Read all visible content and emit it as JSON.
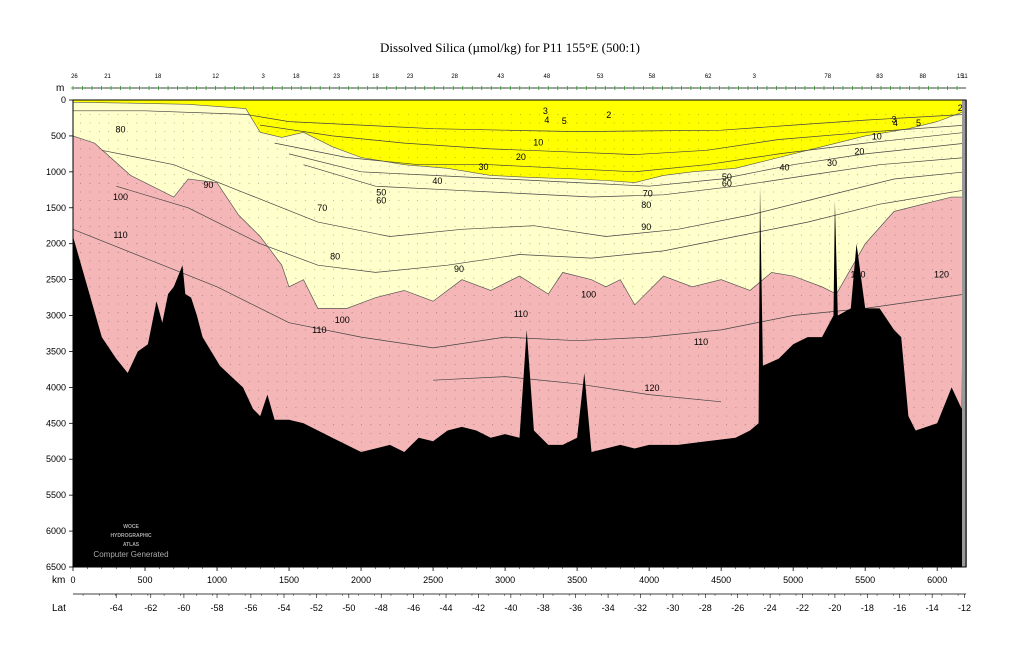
{
  "chart_data": {
    "type": "contour-section",
    "title": "Dissolved Silica (µmol/kg) for P11 155°E (500:1)",
    "depth_unit": "m",
    "distance_unit": "km",
    "lat_label": "Lat",
    "xlim": [
      0,
      6200
    ],
    "ylim": [
      0,
      6500
    ],
    "depth_ticks": [
      0,
      500,
      1000,
      1500,
      2000,
      2500,
      3000,
      3500,
      4000,
      4500,
      5000,
      5500,
      6000,
      6500
    ],
    "distance_ticks": [
      0,
      500,
      1000,
      1500,
      2000,
      2500,
      3000,
      3500,
      4000,
      4500,
      5000,
      5500,
      6000
    ],
    "latitude_ticks": [
      {
        "km": 300,
        "label": "-64"
      },
      {
        "km": 540,
        "label": "-62"
      },
      {
        "km": 770,
        "label": "-60"
      },
      {
        "km": 1000,
        "label": "-58"
      },
      {
        "km": 1235,
        "label": "-56"
      },
      {
        "km": 1465,
        "label": "-54"
      },
      {
        "km": 1690,
        "label": "-52"
      },
      {
        "km": 1915,
        "label": "-50"
      },
      {
        "km": 2140,
        "label": "-48"
      },
      {
        "km": 2365,
        "label": "-46"
      },
      {
        "km": 2590,
        "label": "-44"
      },
      {
        "km": 2815,
        "label": "-42"
      },
      {
        "km": 3040,
        "label": "-40"
      },
      {
        "km": 3265,
        "label": "-38"
      },
      {
        "km": 3490,
        "label": "-36"
      },
      {
        "km": 3715,
        "label": "-34"
      },
      {
        "km": 3940,
        "label": "-32"
      },
      {
        "km": 4165,
        "label": "-30"
      },
      {
        "km": 4390,
        "label": "-28"
      },
      {
        "km": 4615,
        "label": "-26"
      },
      {
        "km": 4840,
        "label": "-24"
      },
      {
        "km": 5065,
        "label": "-22"
      },
      {
        "km": 5290,
        "label": "-20"
      },
      {
        "km": 5515,
        "label": "-18"
      },
      {
        "km": 5740,
        "label": "-16"
      },
      {
        "km": 5965,
        "label": "-14"
      },
      {
        "km": 6190,
        "label": "-12"
      }
    ],
    "station_labels": [
      {
        "km": 10,
        "label": "26"
      },
      {
        "km": 240,
        "label": "21"
      },
      {
        "km": 590,
        "label": "18"
      },
      {
        "km": 990,
        "label": "12"
      },
      {
        "km": 1320,
        "label": "3"
      },
      {
        "km": 1550,
        "label": "18"
      },
      {
        "km": 1830,
        "label": "23"
      },
      {
        "km": 2100,
        "label": "18"
      },
      {
        "km": 2340,
        "label": "23"
      },
      {
        "km": 2650,
        "label": "28"
      },
      {
        "km": 2970,
        "label": "43"
      },
      {
        "km": 3290,
        "label": "48"
      },
      {
        "km": 3660,
        "label": "53"
      },
      {
        "km": 4020,
        "label": "58"
      },
      {
        "km": 4410,
        "label": "62"
      },
      {
        "km": 4730,
        "label": "3"
      },
      {
        "km": 5240,
        "label": "78"
      },
      {
        "km": 5600,
        "label": "83"
      },
      {
        "km": 5900,
        "label": "88"
      },
      {
        "km": 6160,
        "label": "15"
      },
      {
        "km": 6190,
        "label": "11"
      }
    ],
    "contour_levels": [
      2,
      3,
      4,
      5,
      10,
      20,
      30,
      40,
      50,
      60,
      70,
      80,
      90,
      100,
      110,
      120
    ],
    "shading": [
      {
        "range": "< 50",
        "color": "#ffff00"
      },
      {
        "range": "50–100",
        "color": "#ffffcc"
      },
      {
        "range": "> 100",
        "color": "#f4b6b6"
      }
    ],
    "contour_labels": [
      {
        "km": 3280,
        "depth": 150,
        "text": "3"
      },
      {
        "km": 3290,
        "depth": 280,
        "text": "4"
      },
      {
        "km": 3410,
        "depth": 290,
        "text": "5"
      },
      {
        "km": 3720,
        "depth": 210,
        "text": "2"
      },
      {
        "km": 5700,
        "depth": 270,
        "text": "3"
      },
      {
        "km": 5710,
        "depth": 320,
        "text": "4"
      },
      {
        "km": 5870,
        "depth": 320,
        "text": "5"
      },
      {
        "km": 6160,
        "depth": 110,
        "text": "2"
      },
      {
        "km": 3230,
        "depth": 590,
        "text": "10"
      },
      {
        "km": 5580,
        "depth": 510,
        "text": "10"
      },
      {
        "km": 3110,
        "depth": 790,
        "text": "20"
      },
      {
        "km": 5460,
        "depth": 720,
        "text": "20"
      },
      {
        "km": 2850,
        "depth": 930,
        "text": "30"
      },
      {
        "km": 5270,
        "depth": 880,
        "text": "30"
      },
      {
        "km": 2530,
        "depth": 1130,
        "text": "40"
      },
      {
        "km": 4940,
        "depth": 940,
        "text": "40"
      },
      {
        "km": 2140,
        "depth": 1290,
        "text": "50"
      },
      {
        "km": 4540,
        "depth": 1070,
        "text": "50"
      },
      {
        "km": 2140,
        "depth": 1400,
        "text": "60"
      },
      {
        "km": 4540,
        "depth": 1160,
        "text": "60"
      },
      {
        "km": 1730,
        "depth": 1500,
        "text": "70"
      },
      {
        "km": 3990,
        "depth": 1300,
        "text": "70"
      },
      {
        "km": 330,
        "depth": 410,
        "text": "80"
      },
      {
        "km": 1820,
        "depth": 2180,
        "text": "80"
      },
      {
        "km": 3980,
        "depth": 1460,
        "text": "80"
      },
      {
        "km": 940,
        "depth": 1180,
        "text": "90"
      },
      {
        "km": 2680,
        "depth": 2350,
        "text": "90"
      },
      {
        "km": 3980,
        "depth": 1770,
        "text": "90"
      },
      {
        "km": 330,
        "depth": 1350,
        "text": "100"
      },
      {
        "km": 1870,
        "depth": 3060,
        "text": "100"
      },
      {
        "km": 3580,
        "depth": 2710,
        "text": "100"
      },
      {
        "km": 5450,
        "depth": 2430,
        "text": "100"
      },
      {
        "km": 330,
        "depth": 1880,
        "text": "110"
      },
      {
        "km": 1710,
        "depth": 3200,
        "text": "110"
      },
      {
        "km": 3110,
        "depth": 2980,
        "text": "110"
      },
      {
        "km": 4360,
        "depth": 3370,
        "text": "110"
      },
      {
        "km": 4020,
        "depth": 4010,
        "text": "120"
      },
      {
        "km": 6030,
        "depth": 2430,
        "text": "120"
      }
    ],
    "watermark": {
      "logo_lines": [
        "WOCE",
        "HYDROGRAPHIC",
        "ATLAS"
      ],
      "caption": "Computer Generated"
    }
  }
}
